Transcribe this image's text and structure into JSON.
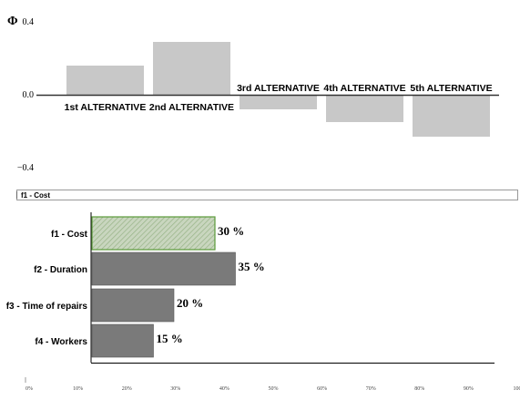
{
  "chart_data": [
    {
      "type": "bar",
      "ylabel": "Φ",
      "ylim": [
        -0.4,
        0.4
      ],
      "yticks": [
        "0.4",
        "0.0",
        "−0.4"
      ],
      "categories": [
        "1st  ALTERNATIVE",
        "2nd ALTERNATIVE",
        "3rd ALTERNATIVE",
        "4th ALTERNATIVE",
        "5th ALTERNATIVE"
      ],
      "values": [
        0.16,
        0.29,
        -0.08,
        -0.15,
        -0.23
      ],
      "bar_color": "#c8c8c8"
    },
    {
      "type": "bar",
      "orientation": "horizontal",
      "categories": [
        "f1 - Cost",
        "f2 - Duration",
        "f3 - Time of repairs",
        "f4 - Workers"
      ],
      "values": [
        30,
        35,
        20,
        15
      ],
      "value_labels": [
        "30 %",
        "35 %",
        "20 %",
        "15 %"
      ],
      "xticks": [
        "0%",
        "10%",
        "20%",
        "30%",
        "40%",
        "50%",
        "60%",
        "70%",
        "80%",
        "90%",
        "100"
      ],
      "selected": "f1 - Cost",
      "bar_color": "#7a7a7a",
      "selected_color": "#b5c9a8",
      "selected_border": "#5a9a3a"
    }
  ],
  "criterion_box": {
    "label": "f1 - Cost"
  }
}
